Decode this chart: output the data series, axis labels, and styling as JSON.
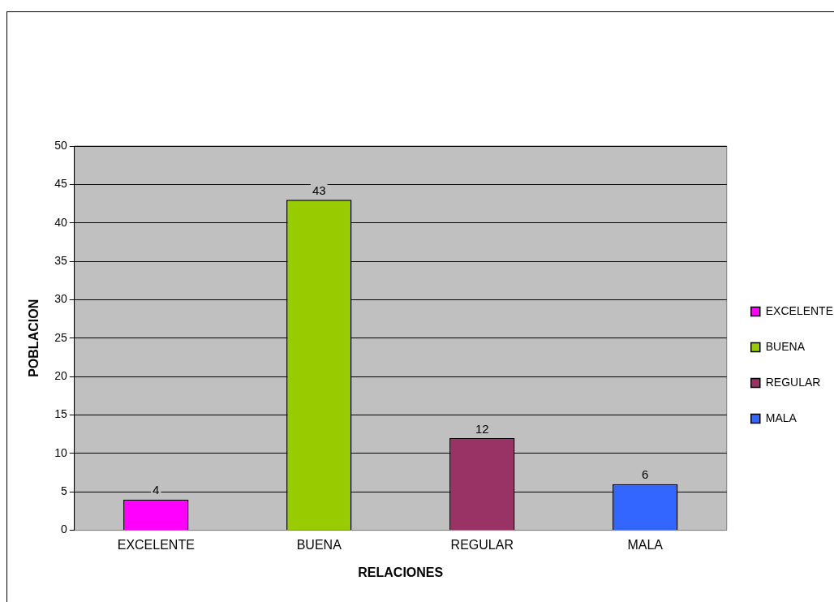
{
  "chart_data": {
    "type": "bar",
    "xlabel": "RELACIONES",
    "ylabel": "POBLACION",
    "categories": [
      "EXCELENTE",
      "BUENA",
      "REGULAR",
      "MALA"
    ],
    "series": [
      {
        "name": "EXCELENTE",
        "color": "#ff00ff",
        "values": [
          4,
          null,
          null,
          null
        ]
      },
      {
        "name": "BUENA",
        "color": "#99cc00",
        "values": [
          null,
          43,
          null,
          null
        ]
      },
      {
        "name": "REGULAR",
        "color": "#993366",
        "values": [
          null,
          null,
          12,
          null
        ]
      },
      {
        "name": "MALA",
        "color": "#3366ff",
        "values": [
          null,
          null,
          null,
          6
        ]
      }
    ],
    "ylim": [
      0,
      50
    ],
    "yticks": [
      0,
      5,
      10,
      15,
      20,
      25,
      30,
      35,
      40,
      45,
      50
    ],
    "grid": "y",
    "legend": "right",
    "data_labels": true
  }
}
